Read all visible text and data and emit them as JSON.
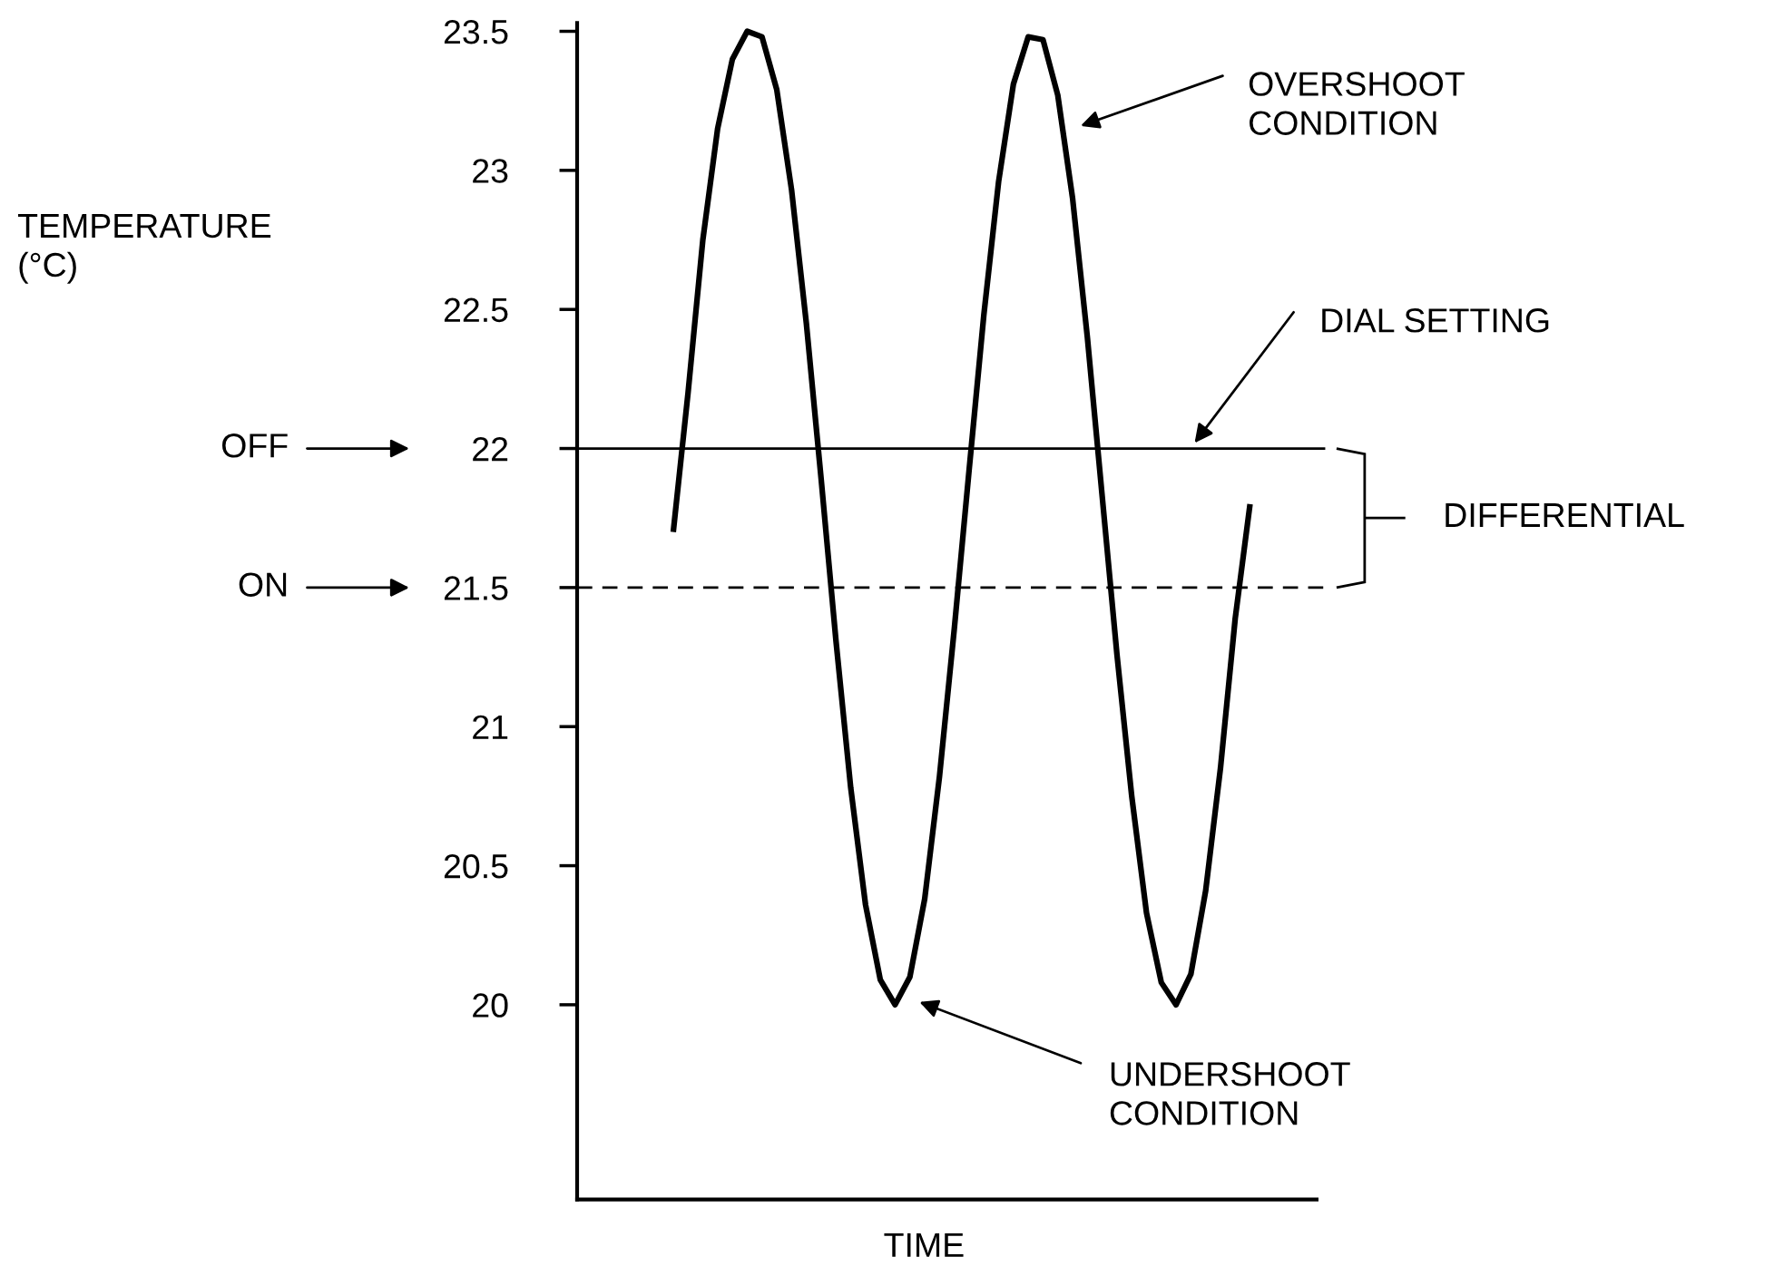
{
  "chart_data": {
    "type": "line",
    "xlabel": "TIME",
    "categories": [
      null,
      null,
      null,
      null,
      null,
      null,
      null,
      null,
      null,
      null,
      null,
      null,
      null,
      null,
      null,
      null,
      null,
      null,
      null,
      null,
      null,
      null,
      null,
      null,
      null,
      null,
      null,
      null,
      null,
      null,
      null,
      null,
      null,
      null,
      null,
      null,
      null,
      null,
      null,
      null,
      null,
      null,
      null,
      null,
      null,
      null,
      null,
      null,
      null,
      null
    ],
    "series": [
      {
        "color": "#000000",
        "values": [
          null,
          null,
          null,
          null,
          null,
          null,
          21.7,
          22.2,
          22.75,
          23.15,
          23.4,
          23.5,
          23.48,
          23.29,
          22.93,
          22.45,
          21.89,
          21.31,
          20.78,
          20.36,
          20.09,
          20.0,
          20.1,
          20.38,
          20.82,
          21.35,
          21.92,
          22.48,
          22.96,
          23.31,
          23.48,
          23.47,
          23.27,
          22.9,
          22.4,
          21.83,
          21.26,
          20.75,
          20.33,
          20.08,
          20.0,
          20.11,
          20.41,
          20.85,
          21.39,
          21.8,
          null,
          null,
          null,
          null
        ]
      }
    ],
    "ylim": [
      19.3,
      23.53
    ],
    "yticks": [
      20,
      20.5,
      21,
      21.5,
      22,
      22.5,
      23,
      23.5
    ],
    "ref_lines": [
      {
        "axis": "y",
        "value": 22,
        "color": "#000000",
        "line_style": "solid"
      },
      {
        "axis": "y",
        "value": 21.5,
        "color": "#000000",
        "line_style": "dashed"
      }
    ],
    "annotations": [
      "TEMPERATURE\n(°C)",
      "OFF",
      "ON",
      "OVERSHOOT\nCONDITION",
      "DIAL SETTING",
      "DIFFERENTIAL",
      "UNDERSHOOT\nCONDITION"
    ],
    "grid": false,
    "legend": false,
    "marker": "none",
    "line_style": "solid"
  }
}
